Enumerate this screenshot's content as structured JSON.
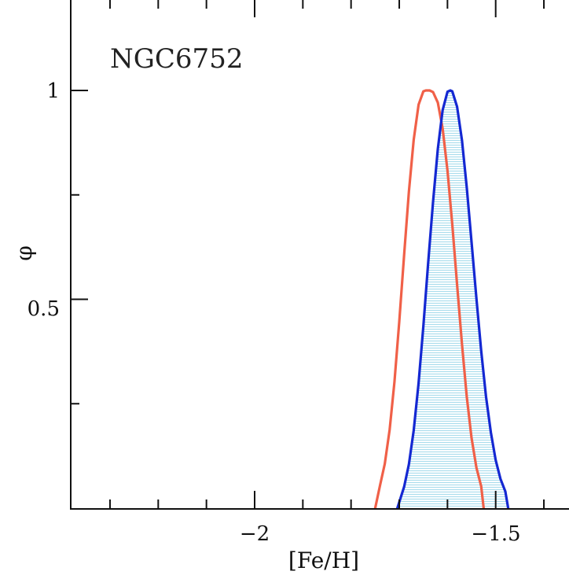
{
  "chart_data": {
    "type": "line",
    "title": "",
    "annotation": "NGC6752",
    "xlabel": "[Fe/H]",
    "ylabel": "φ",
    "xlim": [
      -2.36,
      -1.4
    ],
    "ylim": [
      0,
      1.2
    ],
    "x_major_ticks": [
      -2,
      -1.5
    ],
    "x_major_tick_labels": [
      "−2",
      "−1.5"
    ],
    "x_minor_ticks": [
      -2.3,
      -2.2,
      -2.1,
      -1.9,
      -1.8,
      -1.7,
      -1.6,
      -1.4
    ],
    "y_major_ticks": [
      0.5,
      1
    ],
    "y_major_tick_labels": [
      "0.5",
      "1"
    ],
    "y_minor_ticks": [
      0.25,
      0.75
    ],
    "grid": false,
    "series": [
      {
        "color": "#f06048",
        "fill": false,
        "peak_x": -1.637,
        "x": [
          -1.75,
          -1.74,
          -1.73,
          -1.72,
          -1.71,
          -1.7,
          -1.69,
          -1.68,
          -1.67,
          -1.66,
          -1.65,
          -1.645,
          -1.637,
          -1.63,
          -1.62,
          -1.61,
          -1.6,
          -1.59,
          -1.58,
          -1.57,
          -1.56,
          -1.55,
          -1.54,
          -1.53,
          -1.525
        ],
        "y": [
          0.0,
          0.054,
          0.106,
          0.188,
          0.302,
          0.446,
          0.606,
          0.758,
          0.882,
          0.966,
          0.998,
          1.0,
          1.0,
          0.996,
          0.971,
          0.909,
          0.808,
          0.679,
          0.535,
          0.393,
          0.267,
          0.168,
          0.097,
          0.052,
          0.0
        ]
      },
      {
        "color": "#1428d2",
        "fill": true,
        "fill_color": "#a8dcec",
        "peak_x": -1.594,
        "x": [
          -1.704,
          -1.69,
          -1.68,
          -1.67,
          -1.66,
          -1.65,
          -1.64,
          -1.63,
          -1.62,
          -1.61,
          -1.6,
          -1.594,
          -1.59,
          -1.58,
          -1.57,
          -1.56,
          -1.55,
          -1.54,
          -1.53,
          -1.52,
          -1.51,
          -1.5,
          -1.49,
          -1.48,
          -1.474
        ],
        "y": [
          0.0,
          0.051,
          0.105,
          0.186,
          0.299,
          0.436,
          0.587,
          0.733,
          0.86,
          0.953,
          0.997,
          1.0,
          0.998,
          0.961,
          0.881,
          0.768,
          0.637,
          0.502,
          0.376,
          0.267,
          0.181,
          0.115,
          0.07,
          0.04,
          0.0
        ]
      }
    ]
  }
}
